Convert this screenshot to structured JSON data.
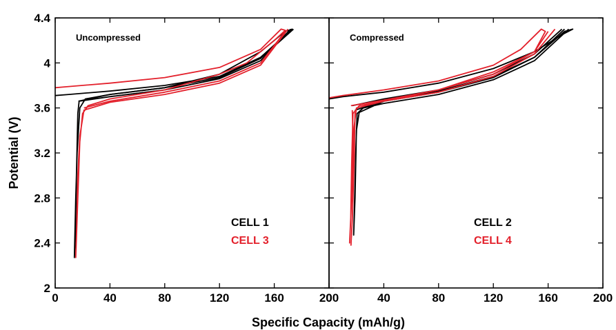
{
  "chart_data": {
    "type": "line",
    "xlabel": "Specific Capacity (mAh/g)",
    "ylabel": "Potential (V)",
    "xlim": [
      0,
      200
    ],
    "ylim": [
      2,
      4.4
    ],
    "x_ticks": [
      "0",
      "40",
      "80",
      "120",
      "160",
      "200"
    ],
    "y_ticks": [
      "2",
      "2.4",
      "2.8",
      "3.2",
      "3.6",
      "4",
      "4.4"
    ],
    "colors": {
      "black": "#000000",
      "red": "#e3202b"
    },
    "panels": [
      {
        "title": "Uncompressed",
        "legend": [
          {
            "label": "CELL 1",
            "color": "#000000"
          },
          {
            "label": "CELL 3",
            "color": "#e3202b"
          }
        ],
        "series": [
          {
            "color": "#000000",
            "points": [
              [
                0,
                3.71
              ],
              [
                10,
                3.72
              ],
              [
                40,
                3.75
              ],
              [
                80,
                3.8
              ],
              [
                120,
                3.88
              ],
              [
                150,
                4.05
              ],
              [
                170,
                4.27
              ],
              [
                173,
                4.3
              ],
              [
                168,
                4.28
              ],
              [
                150,
                4.1
              ],
              [
                120,
                3.9
              ],
              [
                80,
                3.78
              ],
              [
                40,
                3.72
              ],
              [
                22,
                3.68
              ],
              [
                18,
                3.6
              ],
              [
                16,
                3.2
              ],
              [
                15,
                2.8
              ],
              [
                14,
                2.27
              ],
              [
                14.8,
                2.45
              ],
              [
                15.5,
                3.0
              ],
              [
                16.5,
                3.55
              ],
              [
                17.5,
                3.66
              ],
              [
                40,
                3.7
              ],
              [
                80,
                3.76
              ],
              [
                120,
                3.86
              ],
              [
                150,
                4.02
              ],
              [
                172,
                4.3
              ]
            ]
          },
          {
            "color": "#000000",
            "points": [
              [
                17,
                3.66
              ],
              [
                40,
                3.72
              ],
              [
                80,
                3.78
              ],
              [
                120,
                3.87
              ],
              [
                150,
                4.04
              ],
              [
                174,
                4.3
              ]
            ]
          },
          {
            "color": "#e3202b",
            "points": [
              [
                0,
                3.78
              ],
              [
                10,
                3.79
              ],
              [
                40,
                3.82
              ],
              [
                80,
                3.87
              ],
              [
                120,
                3.96
              ],
              [
                150,
                4.12
              ],
              [
                165,
                4.3
              ],
              [
                168,
                4.29
              ],
              [
                160,
                4.2
              ],
              [
                140,
                4.0
              ],
              [
                120,
                3.9
              ],
              [
                80,
                3.76
              ],
              [
                40,
                3.68
              ],
              [
                24,
                3.62
              ],
              [
                20,
                3.55
              ],
              [
                18,
                3.3
              ],
              [
                16.5,
                2.8
              ],
              [
                15,
                2.27
              ],
              [
                15.5,
                2.45
              ],
              [
                16.5,
                3.0
              ],
              [
                18,
                3.35
              ],
              [
                21,
                3.58
              ],
              [
                40,
                3.65
              ],
              [
                80,
                3.72
              ],
              [
                120,
                3.82
              ],
              [
                150,
                3.98
              ],
              [
                170,
                4.3
              ]
            ]
          },
          {
            "color": "#e3202b",
            "points": [
              [
                21,
                3.6
              ],
              [
                40,
                3.66
              ],
              [
                80,
                3.74
              ],
              [
                120,
                3.84
              ],
              [
                150,
                4.0
              ],
              [
                168,
                4.28
              ]
            ]
          }
        ]
      },
      {
        "title": "Compressed",
        "legend": [
          {
            "label": "CELL 2",
            "color": "#000000"
          },
          {
            "label": "CELL 4",
            "color": "#e3202b"
          }
        ],
        "series": [
          {
            "color": "#000000",
            "points": [
              [
                0,
                3.68
              ],
              [
                10,
                3.7
              ],
              [
                40,
                3.74
              ],
              [
                80,
                3.82
              ],
              [
                120,
                3.95
              ],
              [
                150,
                4.1
              ],
              [
                170,
                4.25
              ],
              [
                178,
                4.3
              ],
              [
                172,
                4.28
              ],
              [
                150,
                4.05
              ],
              [
                120,
                3.88
              ],
              [
                80,
                3.75
              ],
              [
                40,
                3.66
              ],
              [
                22,
                3.56
              ],
              [
                20,
                3.4
              ],
              [
                19,
                2.8
              ],
              [
                18,
                2.47
              ],
              [
                18.5,
                2.7
              ],
              [
                19.5,
                3.2
              ],
              [
                20.5,
                3.55
              ],
              [
                25,
                3.6
              ],
              [
                40,
                3.64
              ],
              [
                80,
                3.72
              ],
              [
                120,
                3.85
              ],
              [
                150,
                4.02
              ],
              [
                175,
                4.3
              ]
            ]
          },
          {
            "color": "#000000",
            "points": [
              [
                19,
                3.58
              ],
              [
                40,
                3.66
              ],
              [
                80,
                3.74
              ],
              [
                120,
                3.87
              ],
              [
                150,
                4.05
              ],
              [
                172,
                4.3
              ]
            ]
          },
          {
            "color": "#000000",
            "points": [
              [
                17,
                3.62
              ],
              [
                40,
                3.68
              ],
              [
                80,
                3.76
              ],
              [
                120,
                3.9
              ],
              [
                150,
                4.08
              ],
              [
                170,
                4.3
              ]
            ]
          },
          {
            "color": "#e3202b",
            "points": [
              [
                0,
                3.69
              ],
              [
                10,
                3.71
              ],
              [
                40,
                3.76
              ],
              [
                80,
                3.84
              ],
              [
                120,
                3.98
              ],
              [
                140,
                4.12
              ],
              [
                155,
                4.3
              ],
              [
                158,
                4.28
              ],
              [
                150,
                4.1
              ],
              [
                120,
                3.92
              ],
              [
                80,
                3.76
              ],
              [
                40,
                3.66
              ],
              [
                20,
                3.6
              ],
              [
                18,
                3.4
              ],
              [
                16.5,
                2.8
              ],
              [
                15,
                2.4
              ],
              [
                15.8,
                2.6
              ],
              [
                16.5,
                3.1
              ],
              [
                17.5,
                3.55
              ],
              [
                22,
                3.62
              ],
              [
                40,
                3.66
              ],
              [
                80,
                3.74
              ],
              [
                120,
                3.88
              ],
              [
                150,
                4.08
              ],
              [
                165,
                4.3
              ]
            ]
          },
          {
            "color": "#e3202b",
            "points": [
              [
                16,
                3.62
              ],
              [
                40,
                3.67
              ],
              [
                80,
                3.76
              ],
              [
                120,
                3.9
              ],
              [
                150,
                4.1
              ],
              [
                160,
                4.28
              ]
            ]
          },
          {
            "color": "#e3202b",
            "points": [
              [
                17,
                3.58
              ],
              [
                18,
                3.1
              ],
              [
                17,
                2.6
              ],
              [
                16,
                2.38
              ],
              [
                17,
                2.6
              ],
              [
                18.5,
                3.2
              ],
              [
                19,
                3.56
              ]
            ]
          }
        ]
      }
    ]
  }
}
